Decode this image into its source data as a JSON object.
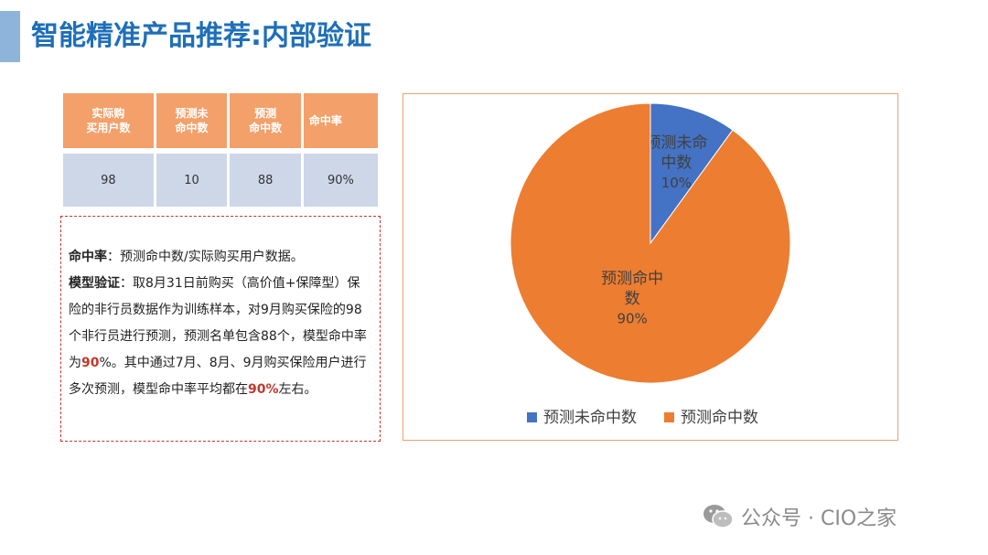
{
  "title": "智能精准产品推荐:内部验证",
  "table": {
    "headers": [
      [
        "实际购",
        "买用户数"
      ],
      [
        "预测未",
        "命中数"
      ],
      [
        "预测",
        "命中数"
      ],
      [
        "命中率"
      ]
    ],
    "values": [
      "98",
      "10",
      "88",
      "90%"
    ]
  },
  "note": {
    "line1_bold": "命中率",
    "line1_text": "：预测命中数/实际购买用户数据。",
    "line2_bold": "模型验证",
    "line2_text": "：取8月31日前购买（高价值+保障型）保险的非行员数据作为训练样本，对9月购买保险的98个非行员进行预测，预测名单包含88个，模型命中率为",
    "hit_rate": "90",
    "line3_text": "%。其中通过7月、8月、9月购买保险用户进行多次预测，模型命中率平均都在",
    "avg_rate": "90%",
    "line4_text": "左右。"
  },
  "chart_data": {
    "type": "pie",
    "categories": [
      "预测未命中数",
      "预测命中数"
    ],
    "values": [
      10,
      90
    ],
    "slice_labels": [
      [
        "预测未命",
        "中数",
        "10%"
      ],
      [
        "预测命中",
        "数",
        "90%"
      ]
    ],
    "colors": [
      "#4472c4",
      "#ed7d31"
    ],
    "start_angle_deg": 0,
    "legend_position": "bottom"
  },
  "watermark": {
    "text": "公众号 · CIO之家",
    "icon": "wechat-icon"
  }
}
